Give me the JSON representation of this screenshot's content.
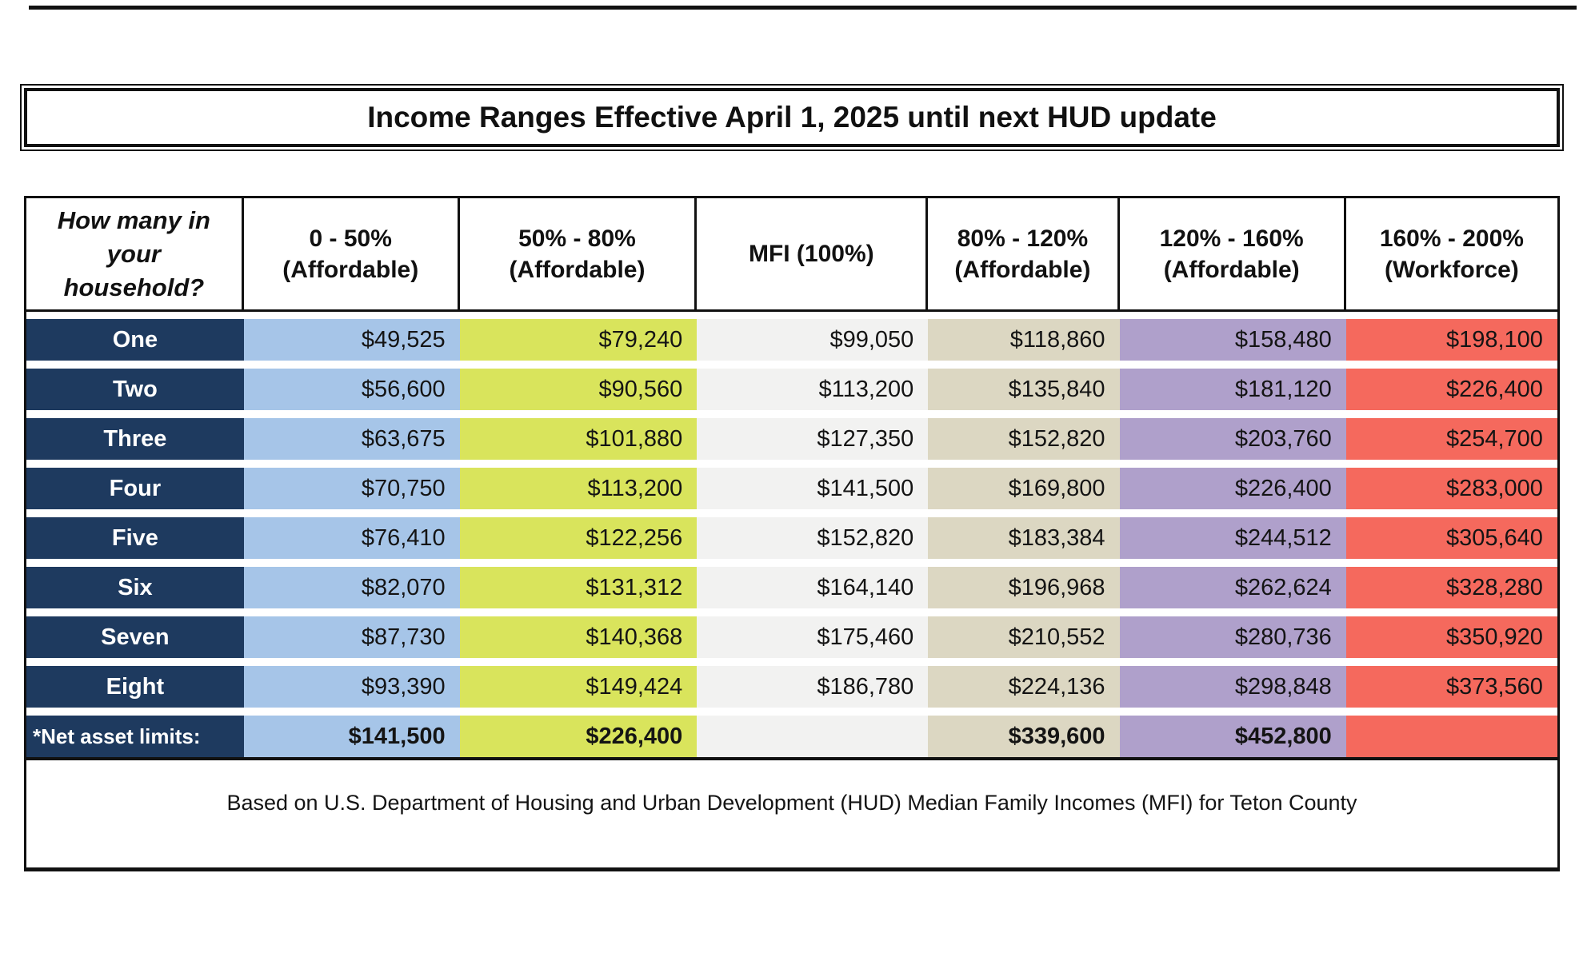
{
  "title": "Income Ranges Effective April 1, 2025 until next HUD update",
  "colors": {
    "navy": "#1E3A5F",
    "blue": "#A6C5E8",
    "yellow_green": "#D9E45C",
    "gray_white": "#F2F2F1",
    "tan": "#DCD7C2",
    "purple": "#AFA0CB",
    "red": "#F5695D"
  },
  "table": {
    "corner_header": "How many in your household?",
    "columns": [
      {
        "range": "0 - 50%",
        "category": "(Affordable)",
        "color": "#A6C5E8"
      },
      {
        "range": "50% - 80%",
        "category": "(Affordable)",
        "color": "#D9E45C"
      },
      {
        "range": "MFI (100%)",
        "category": "",
        "color": "#F2F2F1"
      },
      {
        "range": "80% - 120%",
        "category": "(Affordable)",
        "color": "#DCD7C2"
      },
      {
        "range": "120% - 160%",
        "category": "(Affordable)",
        "color": "#AFA0CB"
      },
      {
        "range": "160% - 200%",
        "category": "(Workforce)",
        "color": "#F5695D"
      }
    ],
    "rows": [
      {
        "label": "One",
        "values": [
          "$49,525",
          "$79,240",
          "$99,050",
          "$118,860",
          "$158,480",
          "$198,100"
        ]
      },
      {
        "label": "Two",
        "values": [
          "$56,600",
          "$90,560",
          "$113,200",
          "$135,840",
          "$181,120",
          "$226,400"
        ]
      },
      {
        "label": "Three",
        "values": [
          "$63,675",
          "$101,880",
          "$127,350",
          "$152,820",
          "$203,760",
          "$254,700"
        ]
      },
      {
        "label": "Four",
        "values": [
          "$70,750",
          "$113,200",
          "$141,500",
          "$169,800",
          "$226,400",
          "$283,000"
        ]
      },
      {
        "label": "Five",
        "values": [
          "$76,410",
          "$122,256",
          "$152,820",
          "$183,384",
          "$244,512",
          "$305,640"
        ]
      },
      {
        "label": "Six",
        "values": [
          "$82,070",
          "$131,312",
          "$164,140",
          "$196,968",
          "$262,624",
          "$328,280"
        ]
      },
      {
        "label": "Seven",
        "values": [
          "$87,730",
          "$140,368",
          "$175,460",
          "$210,552",
          "$280,736",
          "$350,920"
        ]
      },
      {
        "label": "Eight",
        "values": [
          "$93,390",
          "$149,424",
          "$186,780",
          "$224,136",
          "$298,848",
          "$373,560"
        ]
      }
    ],
    "net_asset_row": {
      "label": "*Net asset limits:",
      "values": [
        "$141,500",
        "$226,400",
        "",
        "$339,600",
        "$452,800",
        ""
      ]
    },
    "footnote": "Based on U.S. Department of Housing and Urban Development (HUD) Median Family Incomes (MFI) for Teton County"
  }
}
